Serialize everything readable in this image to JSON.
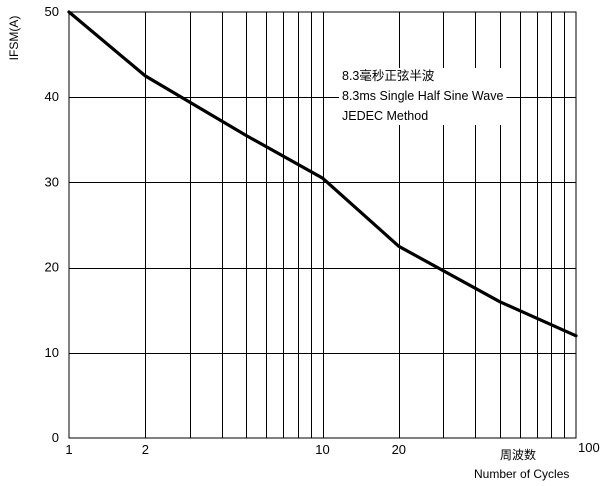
{
  "chart_data": {
    "type": "line",
    "ylabel": "IFSM(A)",
    "xlabel_cn": "周波数",
    "xlabel": "Number of Cycles",
    "x_scale": "log",
    "xlim": [
      1,
      100
    ],
    "ylim": [
      0,
      50
    ],
    "x_ticks": [
      {
        "value": 1,
        "label": "1"
      },
      {
        "value": 2,
        "label": "2"
      },
      {
        "value": 10,
        "label": "10"
      },
      {
        "value": 20,
        "label": "20"
      },
      {
        "value": 100,
        "label": "100"
      }
    ],
    "y_ticks": [
      {
        "value": 0,
        "label": "0"
      },
      {
        "value": 10,
        "label": "10"
      },
      {
        "value": 20,
        "label": "20"
      },
      {
        "value": 30,
        "label": "30"
      },
      {
        "value": 40,
        "label": "40"
      },
      {
        "value": 50,
        "label": "50"
      }
    ],
    "grid": true,
    "annotations": [
      "8.3毫秒正弦半波",
      "8.3ms Single Half Sine Wave",
      "JEDEC Method"
    ],
    "series": [
      {
        "x": [
          1,
          2,
          5,
          10,
          20,
          50,
          100
        ],
        "y": [
          50,
          42.5,
          35.5,
          30.5,
          22.5,
          16,
          12
        ]
      }
    ]
  }
}
